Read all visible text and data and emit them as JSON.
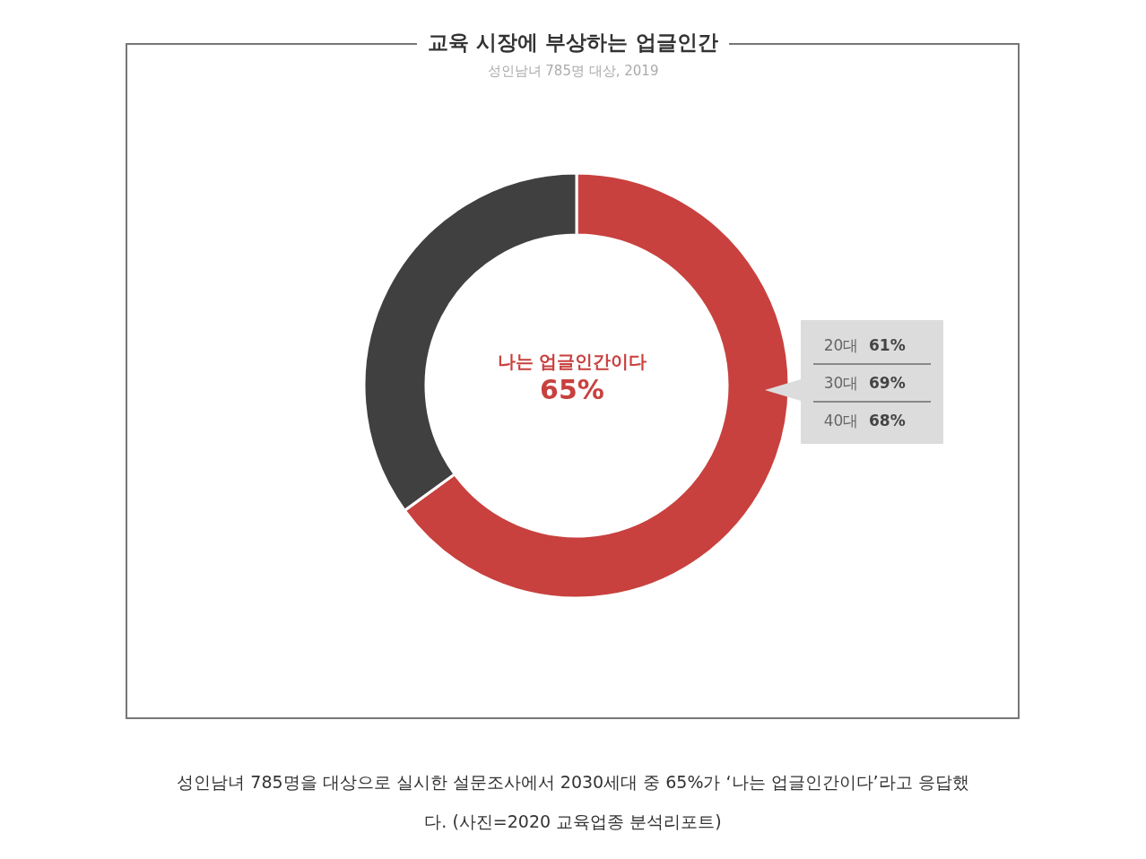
{
  "chart_data": {
    "type": "donut",
    "title": "교육 시장에 부상하는 업글인간",
    "subtitle": "성인남녀 785명 대상, 2019",
    "categories": [
      "나는 업글인간이다",
      null
    ],
    "values": [
      65,
      35
    ],
    "colors": [
      "#c8413e",
      "#404040"
    ],
    "value_labels": [
      "65%",
      null
    ],
    "annotations": [
      "20대 61%",
      "30대 69%",
      "40대 68%",
      "성인남녀 785명을 대상으로 실시한 설문조사에서 2030세대 중 65%가 ‘나는 업글인간이다’라고 응답했다. (사진=2020 교육업종 분석리포트)"
    ]
  }
}
